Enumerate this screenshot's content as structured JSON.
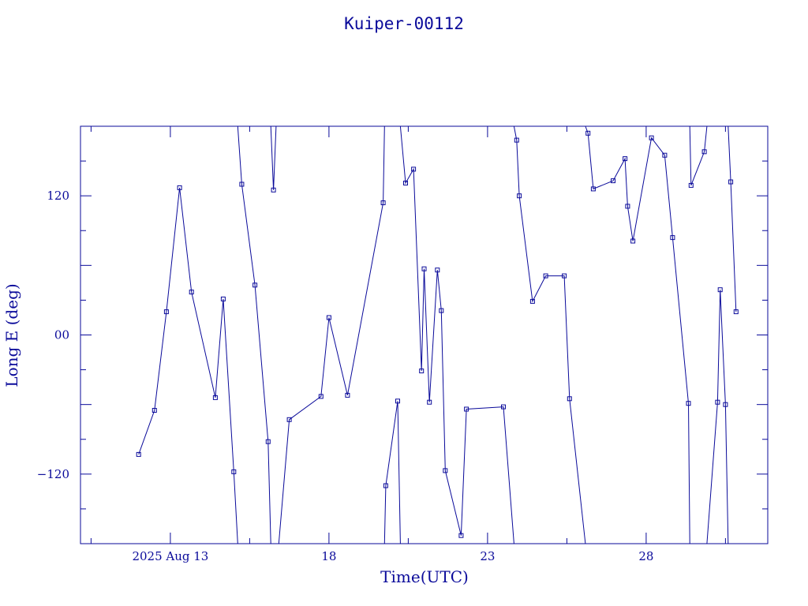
{
  "chart_data": {
    "type": "line",
    "title": "Kuiper-00112",
    "xlabel": "Time(UTC)",
    "ylabel": "Long E (deg)",
    "xlim": [
      "2025-08-10T04:00",
      "2025-08-31T20:00"
    ],
    "ylim": [
      -180,
      180
    ],
    "x_ticks": [
      {
        "x": "2025-08-13T00:00",
        "label": "2025 Aug 13"
      },
      {
        "x": "2025-08-18T00:00",
        "label": "18"
      },
      {
        "x": "2025-08-23T00:00",
        "label": "23"
      },
      {
        "x": "2025-08-28T00:00",
        "label": "28"
      }
    ],
    "y_ticks": [
      {
        "y": -120,
        "label": "−120"
      },
      {
        "y": 0,
        "label": "00"
      },
      {
        "y": 120,
        "label": "120"
      }
    ],
    "grid": false,
    "color": "#0a0a9a",
    "marker": "square",
    "series": [
      {
        "points": [
          [
            "2025-08-12T00:00",
            -103
          ],
          [
            "2025-08-12T12:00",
            -65
          ],
          [
            "2025-08-12T21:00",
            20
          ],
          [
            "2025-08-13T07:00",
            127
          ],
          [
            "2025-08-13T16:00",
            37
          ],
          [
            "2025-08-14T10:00",
            -54
          ],
          [
            "2025-08-14T16:00",
            31
          ],
          [
            "2025-08-15T00:00",
            -118
          ],
          [
            "2025-08-15T03:00",
            -180
          ]
        ]
      },
      {
        "points": [
          [
            "2025-08-15T03:00",
            180
          ],
          [
            "2025-08-15T06:00",
            130
          ],
          [
            "2025-08-15T16:00",
            43
          ],
          [
            "2025-08-16T02:00",
            -92
          ],
          [
            "2025-08-16T04:00",
            -180
          ]
        ]
      },
      {
        "points": [
          [
            "2025-08-16T04:00",
            180
          ],
          [
            "2025-08-16T06:00",
            125
          ],
          [
            "2025-08-16T08:00",
            180
          ]
        ]
      },
      {
        "points": [
          [
            "2025-08-16T10:00",
            -180
          ],
          [
            "2025-08-16T18:00",
            -73
          ],
          [
            "2025-08-17T18:00",
            -53
          ],
          [
            "2025-08-18T00:00",
            15
          ],
          [
            "2025-08-18T14:00",
            -52
          ],
          [
            "2025-08-19T17:00",
            114
          ],
          [
            "2025-08-19T18:00",
            180
          ]
        ]
      },
      {
        "points": [
          [
            "2025-08-19T18:00",
            -180
          ],
          [
            "2025-08-19T19:00",
            -130
          ],
          [
            "2025-08-20T04:00",
            -57
          ],
          [
            "2025-08-20T06:00",
            -180
          ]
        ]
      },
      {
        "points": [
          [
            "2025-08-20T06:00",
            180
          ],
          [
            "2025-08-20T10:00",
            131
          ],
          [
            "2025-08-20T16:00",
            143
          ],
          [
            "2025-08-20T22:00",
            -31
          ],
          [
            "2025-08-21T00:00",
            57
          ],
          [
            "2025-08-21T04:00",
            -58
          ],
          [
            "2025-08-21T10:00",
            56
          ],
          [
            "2025-08-21T13:00",
            21
          ],
          [
            "2025-08-21T16:00",
            -117
          ],
          [
            "2025-08-22T04:00",
            -173
          ],
          [
            "2025-08-22T08:00",
            -64
          ],
          [
            "2025-08-23T12:00",
            -62
          ],
          [
            "2025-08-23T20:00",
            -180
          ]
        ]
      },
      {
        "points": [
          [
            "2025-08-23T20:00",
            180
          ],
          [
            "2025-08-23T22:00",
            168
          ],
          [
            "2025-08-24T00:00",
            120
          ],
          [
            "2025-08-24T10:00",
            29
          ],
          [
            "2025-08-24T20:00",
            51
          ],
          [
            "2025-08-25T10:00",
            51
          ],
          [
            "2025-08-25T14:00",
            -55
          ],
          [
            "2025-08-26T02:00",
            -180
          ]
        ]
      },
      {
        "points": [
          [
            "2025-08-26T02:00",
            180
          ],
          [
            "2025-08-26T04:00",
            174
          ],
          [
            "2025-08-26T08:00",
            126
          ],
          [
            "2025-08-26T23:00",
            133
          ],
          [
            "2025-08-27T08:00",
            152
          ],
          [
            "2025-08-27T10:00",
            111
          ],
          [
            "2025-08-27T14:00",
            81
          ],
          [
            "2025-08-28T04:00",
            170
          ],
          [
            "2025-08-28T14:00",
            155
          ],
          [
            "2025-08-28T20:00",
            84
          ],
          [
            "2025-08-29T08:00",
            -59
          ],
          [
            "2025-08-29T09:00",
            -180
          ]
        ]
      },
      {
        "points": [
          [
            "2025-08-29T09:00",
            180
          ],
          [
            "2025-08-29T10:00",
            129
          ],
          [
            "2025-08-29T20:00",
            158
          ],
          [
            "2025-08-29T22:00",
            180
          ]
        ]
      },
      {
        "points": [
          [
            "2025-08-29T22:00",
            -180
          ],
          [
            "2025-08-30T06:00",
            -58
          ],
          [
            "2025-08-30T08:00",
            39
          ],
          [
            "2025-08-30T12:00",
            -60
          ],
          [
            "2025-08-30T14:00",
            -180
          ]
        ]
      },
      {
        "points": [
          [
            "2025-08-30T14:00",
            180
          ],
          [
            "2025-08-30T16:00",
            132
          ],
          [
            "2025-08-30T20:00",
            20
          ]
        ]
      }
    ]
  }
}
